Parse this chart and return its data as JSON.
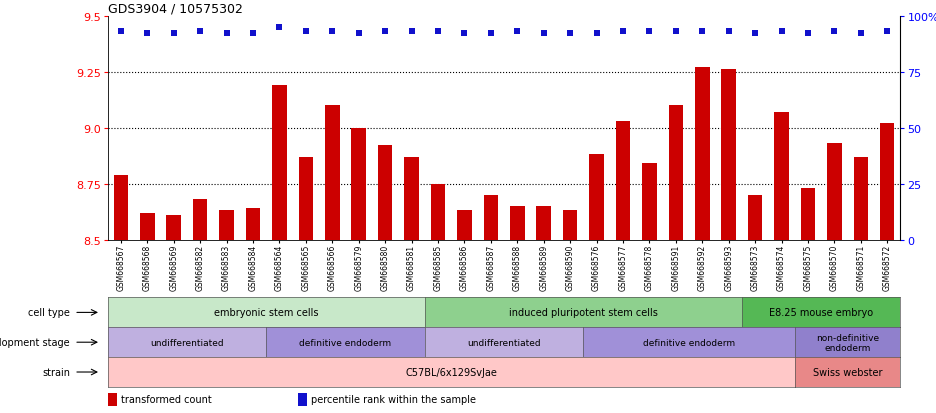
{
  "title": "GDS3904 / 10575302",
  "samples": [
    "GSM668567",
    "GSM668568",
    "GSM668569",
    "GSM668582",
    "GSM668583",
    "GSM668584",
    "GSM668564",
    "GSM668565",
    "GSM668566",
    "GSM668579",
    "GSM668580",
    "GSM668581",
    "GSM668585",
    "GSM668586",
    "GSM668587",
    "GSM668588",
    "GSM668589",
    "GSM668590",
    "GSM668576",
    "GSM668577",
    "GSM668578",
    "GSM668591",
    "GSM668592",
    "GSM668593",
    "GSM668573",
    "GSM668574",
    "GSM668575",
    "GSM668570",
    "GSM668571",
    "GSM668572"
  ],
  "bar_values": [
    8.79,
    8.62,
    8.61,
    8.68,
    8.63,
    8.64,
    9.19,
    8.87,
    9.1,
    9.0,
    8.92,
    8.87,
    8.75,
    8.63,
    8.7,
    8.65,
    8.65,
    8.63,
    8.88,
    9.03,
    8.84,
    9.1,
    9.27,
    9.26,
    8.7,
    9.07,
    8.73,
    8.93,
    8.87,
    9.02
  ],
  "dot_values": [
    93,
    92,
    92,
    93,
    92,
    92,
    95,
    93,
    93,
    92,
    93,
    93,
    93,
    92,
    92,
    93,
    92,
    92,
    92,
    93,
    93,
    93,
    93,
    93,
    92,
    93,
    92,
    93,
    92,
    93
  ],
  "bar_color": "#cc0000",
  "dot_color": "#1111cc",
  "ylim_left": [
    8.5,
    9.5
  ],
  "ylim_right": [
    0,
    100
  ],
  "yticks_left": [
    8.5,
    8.75,
    9.0,
    9.25,
    9.5
  ],
  "yticks_right": [
    0,
    25,
    50,
    75,
    100
  ],
  "cell_type_groups": [
    {
      "label": "embryonic stem cells",
      "start": 0,
      "end": 11,
      "color": "#c8e8c9"
    },
    {
      "label": "induced pluripotent stem cells",
      "start": 12,
      "end": 23,
      "color": "#8ed08e"
    },
    {
      "label": "E8.25 mouse embryo",
      "start": 24,
      "end": 29,
      "color": "#55b855"
    }
  ],
  "dev_stage_groups": [
    {
      "label": "undifferentiated",
      "start": 0,
      "end": 5,
      "color": "#bfb0e0"
    },
    {
      "label": "definitive endoderm",
      "start": 6,
      "end": 11,
      "color": "#a090d8"
    },
    {
      "label": "undifferentiated",
      "start": 12,
      "end": 17,
      "color": "#bfb0e0"
    },
    {
      "label": "definitive endoderm",
      "start": 18,
      "end": 25,
      "color": "#a090d8"
    },
    {
      "label": "non-definitive\nendoderm",
      "start": 26,
      "end": 29,
      "color": "#9080cc"
    }
  ],
  "strain_groups": [
    {
      "label": "C57BL/6x129SvJae",
      "start": 0,
      "end": 25,
      "color": "#ffc8c8"
    },
    {
      "label": "Swiss webster",
      "start": 26,
      "end": 29,
      "color": "#e88888"
    }
  ],
  "row_labels": [
    "cell type",
    "development stage",
    "strain"
  ],
  "legend_items": [
    {
      "color": "#cc0000",
      "label": "transformed count"
    },
    {
      "color": "#1111cc",
      "label": "percentile rank within the sample"
    }
  ]
}
